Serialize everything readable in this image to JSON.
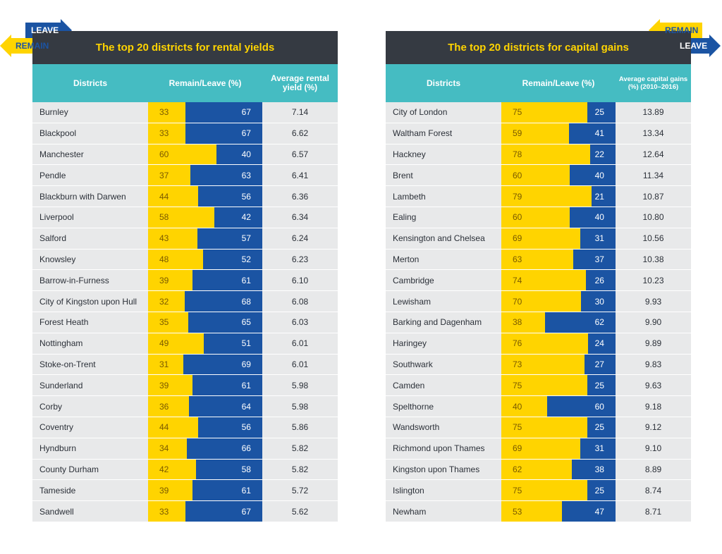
{
  "colors": {
    "remain": "#ffd400",
    "leave": "#1b54a3",
    "title_bg": "#353a42",
    "header_bg": "#45bcc2",
    "row_bg": "#e8e9ea"
  },
  "legend": {
    "leave_label": "LEAVE",
    "remain_label": "REMAIN"
  },
  "chart_data": [
    {
      "type": "table",
      "title": "The top 20 districts for rental yields",
      "columns": [
        "Districts",
        "Remain/Leave (%)",
        "Average rental yield (%)"
      ],
      "rows": [
        {
          "district": "Burnley",
          "remain": 33,
          "leave": 67,
          "value": "7.14"
        },
        {
          "district": "Blackpool",
          "remain": 33,
          "leave": 67,
          "value": "6.62"
        },
        {
          "district": "Manchester",
          "remain": 60,
          "leave": 40,
          "value": "6.57"
        },
        {
          "district": "Pendle",
          "remain": 37,
          "leave": 63,
          "value": "6.41"
        },
        {
          "district": "Blackburn with Darwen",
          "remain": 44,
          "leave": 56,
          "value": "6.36"
        },
        {
          "district": "Liverpool",
          "remain": 58,
          "leave": 42,
          "value": "6.34"
        },
        {
          "district": "Salford",
          "remain": 43,
          "leave": 57,
          "value": "6.24"
        },
        {
          "district": "Knowsley",
          "remain": 48,
          "leave": 52,
          "value": "6.23"
        },
        {
          "district": "Barrow-in-Furness",
          "remain": 39,
          "leave": 61,
          "value": "6.10"
        },
        {
          "district": "City of Kingston upon Hull",
          "remain": 32,
          "leave": 68,
          "value": "6.08"
        },
        {
          "district": "Forest Heath",
          "remain": 35,
          "leave": 65,
          "value": "6.03"
        },
        {
          "district": "Nottingham",
          "remain": 49,
          "leave": 51,
          "value": "6.01"
        },
        {
          "district": "Stoke-on-Trent",
          "remain": 31,
          "leave": 69,
          "value": "6.01"
        },
        {
          "district": "Sunderland",
          "remain": 39,
          "leave": 61,
          "value": "5.98"
        },
        {
          "district": "Corby",
          "remain": 36,
          "leave": 64,
          "value": "5.98"
        },
        {
          "district": "Coventry",
          "remain": 44,
          "leave": 56,
          "value": "5.86"
        },
        {
          "district": "Hyndburn",
          "remain": 34,
          "leave": 66,
          "value": "5.82"
        },
        {
          "district": "County Durham",
          "remain": 42,
          "leave": 58,
          "value": "5.82"
        },
        {
          "district": "Tameside",
          "remain": 39,
          "leave": 61,
          "value": "5.72"
        },
        {
          "district": "Sandwell",
          "remain": 33,
          "leave": 67,
          "value": "5.62"
        }
      ]
    },
    {
      "type": "table",
      "title": "The top 20 districts for capital gains",
      "columns": [
        "Districts",
        "Remain/Leave (%)",
        "Average capital gains (%) (2010–2016)"
      ],
      "rows": [
        {
          "district": "City of London",
          "remain": 75,
          "leave": 25,
          "value": "13.89"
        },
        {
          "district": "Waltham Forest",
          "remain": 59,
          "leave": 41,
          "value": "13.34"
        },
        {
          "district": "Hackney",
          "remain": 78,
          "leave": 22,
          "value": "12.64"
        },
        {
          "district": "Brent",
          "remain": 60,
          "leave": 40,
          "value": "11.34"
        },
        {
          "district": "Lambeth",
          "remain": 79,
          "leave": 21,
          "value": "10.87"
        },
        {
          "district": "Ealing",
          "remain": 60,
          "leave": 40,
          "value": "10.80"
        },
        {
          "district": "Kensington and Chelsea",
          "remain": 69,
          "leave": 31,
          "value": "10.56"
        },
        {
          "district": "Merton",
          "remain": 63,
          "leave": 37,
          "value": "10.38"
        },
        {
          "district": "Cambridge",
          "remain": 74,
          "leave": 26,
          "value": "10.23"
        },
        {
          "district": "Lewisham",
          "remain": 70,
          "leave": 30,
          "value": "9.93"
        },
        {
          "district": "Barking and Dagenham",
          "remain": 38,
          "leave": 62,
          "value": "9.90"
        },
        {
          "district": "Haringey",
          "remain": 76,
          "leave": 24,
          "value": "9.89"
        },
        {
          "district": "Southwark",
          "remain": 73,
          "leave": 27,
          "value": "9.83"
        },
        {
          "district": "Camden",
          "remain": 75,
          "leave": 25,
          "value": "9.63"
        },
        {
          "district": "Spelthorne",
          "remain": 40,
          "leave": 60,
          "value": "9.18"
        },
        {
          "district": "Wandsworth",
          "remain": 75,
          "leave": 25,
          "value": "9.12"
        },
        {
          "district": "Richmond upon Thames",
          "remain": 69,
          "leave": 31,
          "value": "9.10"
        },
        {
          "district": "Kingston upon Thames",
          "remain": 62,
          "leave": 38,
          "value": "8.89"
        },
        {
          "district": "Islington",
          "remain": 75,
          "leave": 25,
          "value": "8.74"
        },
        {
          "district": "Newham",
          "remain": 53,
          "leave": 47,
          "value": "8.71"
        }
      ]
    }
  ]
}
